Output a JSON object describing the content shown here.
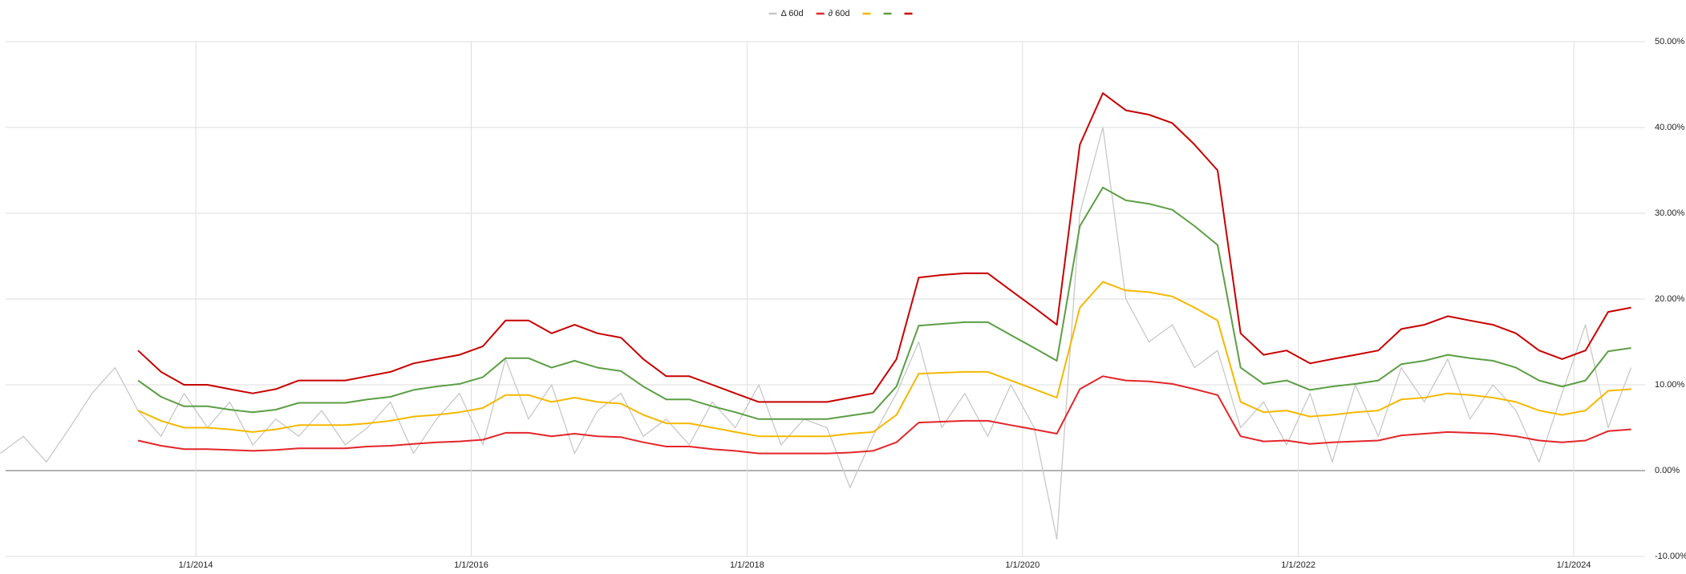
{
  "chart_data": {
    "type": "line",
    "x": [
      "2012-08-01",
      "2012-10-01",
      "2012-12-01",
      "2013-02-01",
      "2013-04-01",
      "2013-06-01",
      "2013-08-01",
      "2013-10-01",
      "2013-12-01",
      "2014-02-01",
      "2014-04-01",
      "2014-06-01",
      "2014-08-01",
      "2014-10-01",
      "2014-12-01",
      "2015-02-01",
      "2015-04-01",
      "2015-06-01",
      "2015-08-01",
      "2015-10-01",
      "2015-12-01",
      "2016-02-01",
      "2016-04-01",
      "2016-06-01",
      "2016-08-01",
      "2016-10-01",
      "2016-12-01",
      "2017-02-01",
      "2017-04-01",
      "2017-06-01",
      "2017-08-01",
      "2017-10-01",
      "2017-12-01",
      "2018-02-01",
      "2018-04-01",
      "2018-06-01",
      "2018-08-01",
      "2018-10-01",
      "2018-12-01",
      "2019-02-01",
      "2019-04-01",
      "2019-06-01",
      "2019-08-01",
      "2019-10-01",
      "2019-12-01",
      "2020-02-01",
      "2020-04-01",
      "2020-06-01",
      "2020-08-01",
      "2020-10-01",
      "2020-12-01",
      "2021-02-01",
      "2021-04-01",
      "2021-06-01",
      "2021-08-01",
      "2021-10-01",
      "2021-12-01",
      "2022-02-01",
      "2022-04-01",
      "2022-06-01",
      "2022-08-01",
      "2022-10-01",
      "2022-12-01",
      "2023-02-01",
      "2023-04-01",
      "2023-06-01",
      "2023-08-01",
      "2023-10-01",
      "2023-12-01",
      "2024-02-01",
      "2024-04-01",
      "2024-06-01"
    ],
    "series": [
      {
        "name": "Δ 60d",
        "color": "#c8c8c8",
        "values": [
          2,
          4,
          1,
          5,
          9,
          12,
          7,
          4,
          9,
          5,
          8,
          3,
          6,
          4,
          7,
          3,
          5,
          8,
          2,
          6,
          9,
          3,
          13,
          6,
          10,
          2,
          7,
          9,
          4,
          6,
          3,
          8,
          5,
          10,
          3,
          6,
          5,
          -2,
          4,
          9,
          15,
          5,
          9,
          4,
          10,
          5,
          -8,
          30,
          40,
          20,
          15,
          17,
          12,
          14,
          5,
          8,
          3,
          9,
          1,
          10,
          4,
          12,
          8,
          13,
          6,
          10,
          7,
          1,
          9,
          17,
          5,
          12
        ]
      },
      {
        "name": "∂ 60d",
        "color": "#e3262a",
        "values": [
          null,
          null,
          null,
          null,
          null,
          null,
          3.5,
          2.9,
          2.5,
          2.5,
          2.4,
          2.3,
          2.4,
          2.6,
          2.6,
          2.6,
          2.8,
          2.9,
          3.1,
          3.3,
          3.4,
          3.6,
          4.4,
          4.4,
          4,
          4.3,
          4,
          3.9,
          3.3,
          2.8,
          2.8,
          2.5,
          2.3,
          2,
          2,
          2,
          2,
          2.1,
          2.3,
          3.3,
          5.6,
          5.7,
          5.8,
          5.8,
          5.3,
          4.8,
          4.3,
          9.5,
          11,
          10.5,
          10.4,
          10.1,
          9.5,
          8.8,
          4,
          3.4,
          3.5,
          3.1,
          3.3,
          3.4,
          3.5,
          4.1,
          4.3,
          4.5,
          4.4,
          4.3,
          4,
          3.5,
          3.3,
          3.5,
          4.6,
          4.8
        ]
      },
      {
        "color": "#f5b800",
        "values": [
          null,
          null,
          null,
          null,
          null,
          null,
          7,
          5.8,
          5,
          5,
          4.8,
          4.5,
          4.8,
          5.3,
          5.3,
          5.3,
          5.5,
          5.8,
          6.3,
          6.5,
          6.8,
          7.3,
          8.8,
          8.8,
          8,
          8.5,
          8,
          7.8,
          6.5,
          5.5,
          5.5,
          5,
          4.5,
          4,
          4,
          4,
          4,
          4.3,
          4.5,
          6.5,
          11.3,
          11.4,
          11.5,
          11.5,
          10.5,
          9.5,
          8.5,
          19,
          22,
          21,
          20.8,
          20.3,
          19,
          17.5,
          8,
          6.8,
          7,
          6.3,
          6.5,
          6.8,
          7,
          8.3,
          8.5,
          9,
          8.8,
          8.5,
          8,
          7,
          6.5,
          7,
          9.3,
          9.5
        ]
      },
      {
        "color": "#5c9e45",
        "values": [
          null,
          null,
          null,
          null,
          null,
          null,
          10.5,
          8.6,
          7.5,
          7.5,
          7.1,
          6.8,
          7.1,
          7.9,
          7.9,
          7.9,
          8.3,
          8.6,
          9.4,
          9.8,
          10.1,
          10.9,
          13.1,
          13.1,
          12,
          12.8,
          12,
          11.6,
          9.8,
          8.3,
          8.3,
          7.5,
          6.8,
          6,
          6,
          6,
          6,
          6.4,
          6.8,
          9.8,
          16.9,
          17.1,
          17.3,
          17.3,
          15.8,
          14.3,
          12.8,
          28.5,
          33,
          31.5,
          31.1,
          30.4,
          28.5,
          26.3,
          12,
          10.1,
          10.5,
          9.4,
          9.8,
          10.1,
          10.5,
          12.4,
          12.8,
          13.5,
          13.1,
          12.8,
          12,
          10.5,
          9.8,
          10.5,
          13.9,
          14.3
        ]
      },
      {
        "color": "#c80000",
        "values": [
          null,
          null,
          null,
          null,
          null,
          null,
          14,
          11.5,
          10,
          10,
          9.5,
          9,
          9.5,
          10.5,
          10.5,
          10.5,
          11,
          11.5,
          12.5,
          13,
          13.5,
          14.5,
          17.5,
          17.5,
          16,
          17,
          16,
          15.5,
          13,
          11,
          11,
          10,
          9,
          8,
          8,
          8,
          8,
          8.5,
          9,
          13,
          22.5,
          22.8,
          23,
          23,
          21,
          19,
          17,
          38,
          44,
          42,
          41.5,
          40.5,
          38,
          35,
          16,
          13.5,
          14,
          12.5,
          13,
          13.5,
          14,
          16.5,
          17,
          18,
          17.5,
          17,
          16,
          14,
          13,
          14,
          18.5,
          19
        ]
      }
    ],
    "xlim": [
      "2012-08-15",
      "2024-07-08"
    ],
    "xticks": [
      {
        "value": "2014-01-01",
        "label": "1/1/2014"
      },
      {
        "value": "2016-01-01",
        "label": "1/1/2016"
      },
      {
        "value": "2018-01-01",
        "label": "1/1/2018"
      },
      {
        "value": "2020-01-01",
        "label": "1/1/2020"
      },
      {
        "value": "2022-01-01",
        "label": "1/1/2022"
      },
      {
        "value": "2024-01-01",
        "label": "1/1/2024"
      }
    ],
    "ylim": [
      -10,
      50
    ],
    "yticks": [
      {
        "value": -10,
        "label": "-10.00%"
      },
      {
        "value": 0,
        "label": "0.00%"
      },
      {
        "value": 10,
        "label": "10.00%"
      },
      {
        "value": 20,
        "label": "20.00%"
      },
      {
        "value": 30,
        "label": "30.00%"
      },
      {
        "value": 40,
        "label": "40.00%"
      },
      {
        "value": 50,
        "label": "50.00%"
      }
    ],
    "grid": true,
    "legend": "top"
  }
}
